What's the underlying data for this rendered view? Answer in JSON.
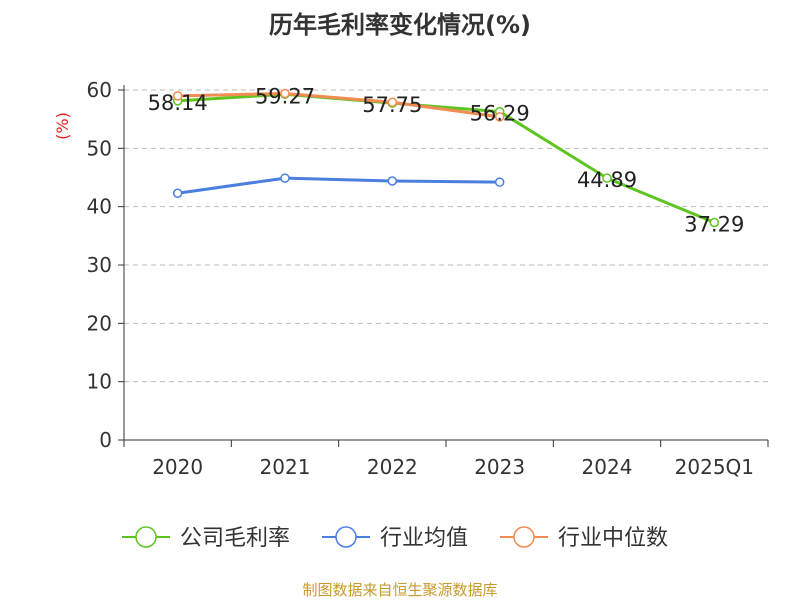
{
  "title": "历年毛利率变化情况(%)",
  "source": "制图数据来自恒生聚源数据库",
  "colors": {
    "company": "#5ec41f",
    "industry_avg": "#4a7fde",
    "industry_median": "#f28c52",
    "unit_label": "#e02020",
    "source_text": "#c89a2b",
    "grid": "#bbbbbb",
    "axis": "#333333"
  },
  "chart_data": {
    "type": "line",
    "title": "历年毛利率变化情况(%)",
    "ylabel": "(%)",
    "xlabel": "",
    "categories": [
      "2020",
      "2021",
      "2022",
      "2023",
      "2024",
      "2025Q1"
    ],
    "ylim": [
      0,
      60
    ],
    "yticks": [
      0,
      10,
      20,
      30,
      40,
      50,
      60
    ],
    "grid": "horizontal-dashed",
    "legend_position": "bottom",
    "series": [
      {
        "name": "公司毛利率",
        "key": "company",
        "values": [
          58.14,
          59.27,
          57.75,
          56.29,
          44.89,
          37.29
        ],
        "labels": [
          "58.14",
          "59.27",
          "57.75",
          "56.29",
          "44.89",
          "37.29"
        ]
      },
      {
        "name": "行业均值",
        "key": "industry_avg",
        "values": [
          42.3,
          44.9,
          44.4,
          44.2,
          null,
          null
        ]
      },
      {
        "name": "行业中位数",
        "key": "industry_median",
        "values": [
          59.0,
          59.4,
          57.9,
          55.4,
          null,
          null
        ]
      }
    ]
  }
}
